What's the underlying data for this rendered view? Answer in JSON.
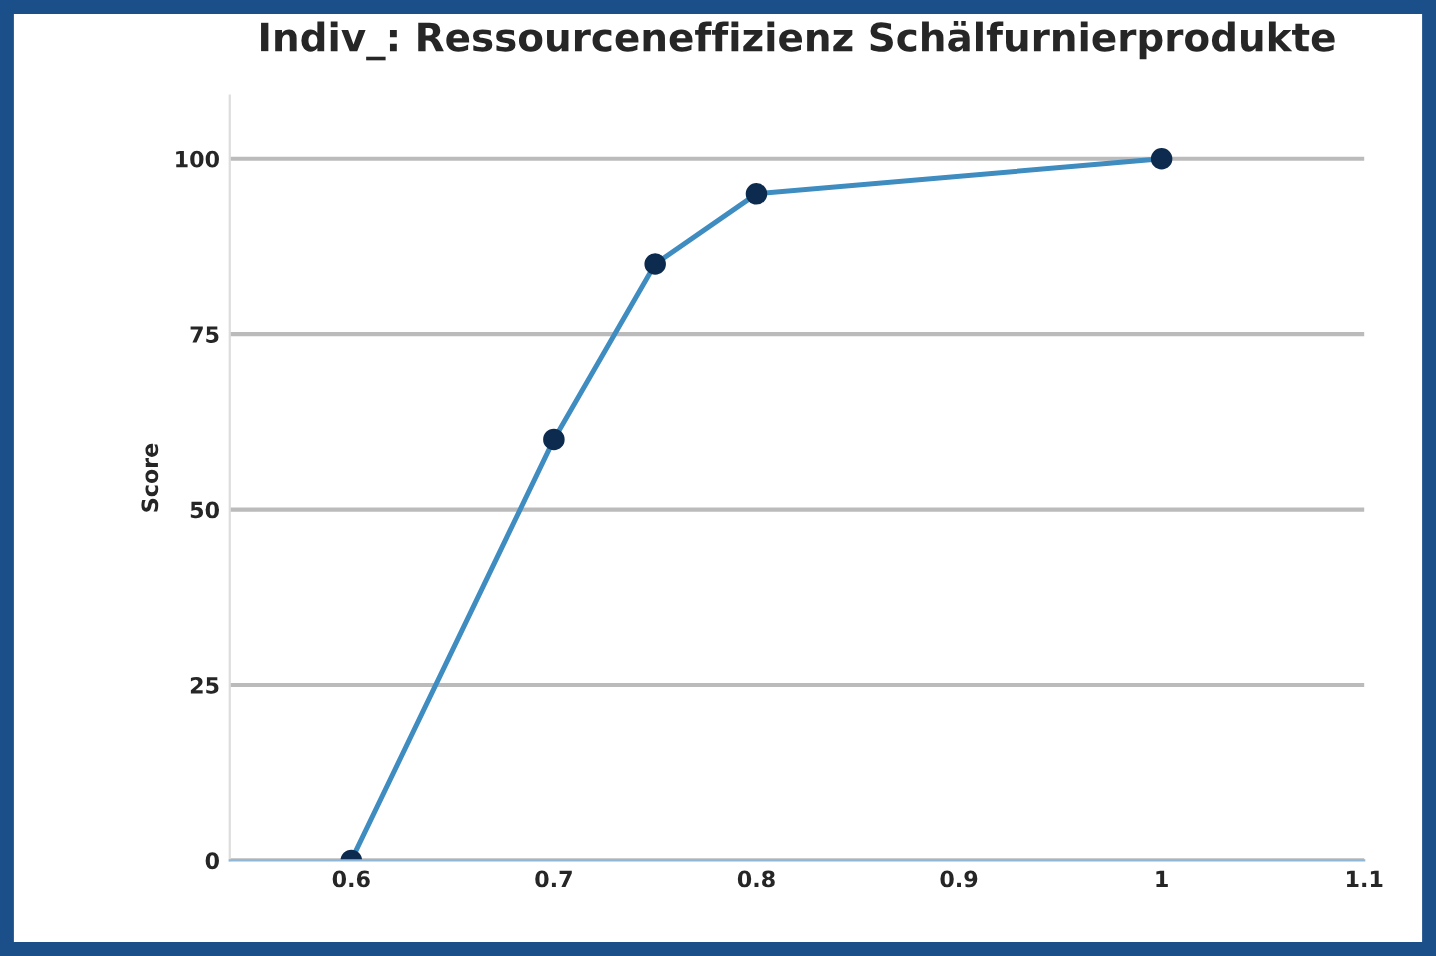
{
  "chart_data": {
    "type": "line",
    "title": "Indiv_: Ressourceneffizienz Schälfurnierprodukte",
    "ylabel": "Score",
    "x": [
      0.6,
      0.7,
      0.75,
      0.8,
      1
    ],
    "series": [
      {
        "color": "#3f8cc0",
        "values": [
          0,
          60,
          85,
          95,
          100
        ]
      }
    ],
    "xlim": [
      0.54,
      1.1
    ],
    "xticks": [
      0.6,
      0.7,
      0.8,
      0.9,
      1,
      1.1
    ],
    "ylim": [
      0,
      109
    ],
    "yticks": [
      0,
      25,
      50,
      75,
      100
    ],
    "grid": "y",
    "marker": "circle",
    "line_style": "solid",
    "legend": false
  }
}
